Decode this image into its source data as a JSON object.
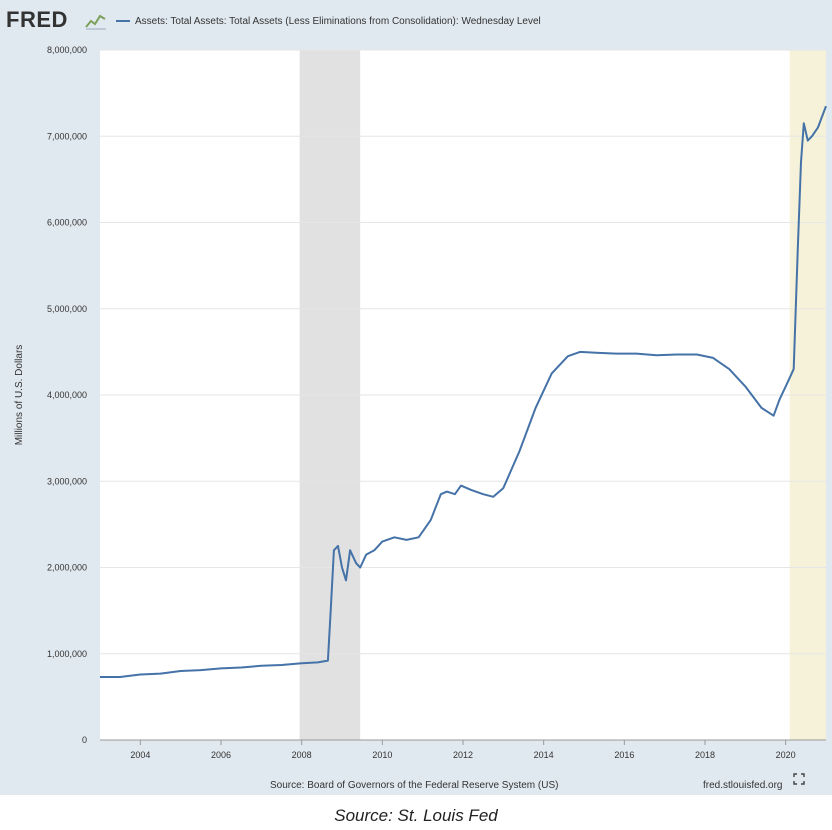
{
  "header": {
    "logo_text": "FRED",
    "logo_icon": "chart-squiggle-icon",
    "legend_label": "Assets: Total Assets: Total Assets (Less Eliminations from Consolidation): Wednesday Level"
  },
  "footer": {
    "source": "Source: Board of Governors of the Federal Reserve System (US)",
    "site": "fred.stlouisfed.org",
    "expand_icon": "expand-arrows-icon"
  },
  "caption": "Source: St. Louis Fed",
  "colors": {
    "line": "#4572a7",
    "recession_gfc": "#e1e1e1",
    "recession_covid": "#f5f2d9",
    "frame": "#e1e9f0"
  },
  "chart_data": {
    "type": "line",
    "title": "Assets: Total Assets: Total Assets (Less Eliminations from Consolidation): Wednesday Level",
    "xlabel": "",
    "ylabel": "Millions of U.S. Dollars",
    "xlim": [
      2003.0,
      2021.0
    ],
    "ylim": [
      0,
      8000000
    ],
    "x_ticks": [
      2004,
      2006,
      2008,
      2010,
      2012,
      2014,
      2016,
      2018,
      2020
    ],
    "y_ticks": [
      0,
      1000000,
      2000000,
      3000000,
      4000000,
      5000000,
      6000000,
      7000000,
      8000000
    ],
    "y_tick_labels": [
      "0",
      "1,000,000",
      "2,000,000",
      "3,000,000",
      "4,000,000",
      "5,000,000",
      "6,000,000",
      "7,000,000",
      "8,000,000"
    ],
    "recessions": [
      [
        2007.95,
        2009.45
      ],
      [
        2020.1,
        2021.0
      ]
    ],
    "grid": true,
    "series": [
      {
        "name": "Assets: Total Assets: Total Assets (Less Eliminations from Consolidation): Wednesday Level",
        "x": [
          2003.0,
          2003.5,
          2004.0,
          2004.5,
          2005.0,
          2005.5,
          2006.0,
          2006.5,
          2007.0,
          2007.5,
          2008.0,
          2008.4,
          2008.65,
          2008.72,
          2008.8,
          2008.9,
          2009.0,
          2009.1,
          2009.2,
          2009.35,
          2009.45,
          2009.6,
          2009.8,
          2010.0,
          2010.3,
          2010.6,
          2010.9,
          2011.2,
          2011.45,
          2011.6,
          2011.8,
          2011.95,
          2012.2,
          2012.5,
          2012.75,
          2013.0,
          2013.4,
          2013.8,
          2014.2,
          2014.6,
          2014.9,
          2015.3,
          2015.8,
          2016.3,
          2016.8,
          2017.3,
          2017.8,
          2018.2,
          2018.6,
          2019.0,
          2019.4,
          2019.7,
          2019.85,
          2020.0,
          2020.1,
          2020.2,
          2020.3,
          2020.38,
          2020.45,
          2020.55,
          2020.65,
          2020.8,
          2021.0
        ],
        "values": [
          730000,
          730000,
          760000,
          770000,
          800000,
          810000,
          830000,
          840000,
          860000,
          870000,
          890000,
          900000,
          920000,
          1500000,
          2200000,
          2250000,
          2000000,
          1850000,
          2200000,
          2050000,
          2000000,
          2150000,
          2200000,
          2300000,
          2350000,
          2320000,
          2350000,
          2550000,
          2850000,
          2880000,
          2850000,
          2950000,
          2900000,
          2850000,
          2820000,
          2920000,
          3350000,
          3850000,
          4250000,
          4450000,
          4500000,
          4490000,
          4480000,
          4480000,
          4460000,
          4470000,
          4470000,
          4430000,
          4300000,
          4100000,
          3850000,
          3760000,
          3950000,
          4100000,
          4200000,
          4300000,
          5700000,
          6700000,
          7150000,
          6950000,
          7000000,
          7100000,
          7350000
        ]
      }
    ]
  }
}
